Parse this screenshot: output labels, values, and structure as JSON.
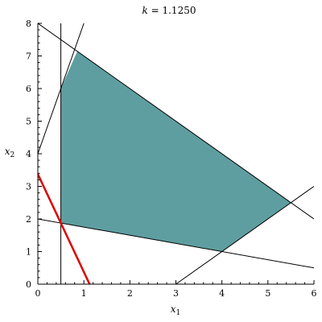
{
  "chart_data": {
    "type": "line",
    "title": {
      "var": "k",
      "text": " = 1.1250"
    },
    "xlabel": {
      "base": "x",
      "sub": "1"
    },
    "ylabel": {
      "base": "x",
      "sub": "2"
    },
    "xlim": [
      0,
      6
    ],
    "ylim": [
      0,
      8
    ],
    "x_ticks": [
      0,
      1,
      2,
      3,
      4,
      5,
      6
    ],
    "y_ticks": [
      0,
      1,
      2,
      3,
      4,
      5,
      6,
      7,
      8
    ],
    "grid": false,
    "feasible_region": {
      "color": "#5f9ea0",
      "vertices": [
        [
          0.5,
          1.875
        ],
        [
          0.5,
          6.0
        ],
        [
          0.857,
          7.142
        ],
        [
          5.5,
          2.5
        ],
        [
          4.0,
          1.0
        ]
      ]
    },
    "constraint_lines": [
      {
        "id": "vertical-x1-0.5",
        "color": "#000000",
        "points": [
          [
            0.5,
            0
          ],
          [
            0.5,
            8
          ]
        ]
      },
      {
        "id": "line-steep-up",
        "color": "#000000",
        "points": [
          [
            0,
            4
          ],
          [
            1.0,
            8.0
          ]
        ]
      },
      {
        "id": "line-top-diagonal",
        "color": "#000000",
        "points": [
          [
            0,
            8
          ],
          [
            6,
            2.0
          ]
        ]
      },
      {
        "id": "line-lower-diagonal",
        "color": "#000000",
        "points": [
          [
            0,
            2
          ],
          [
            6,
            0.5
          ]
        ]
      },
      {
        "id": "line-right-diagonal",
        "color": "#000000",
        "points": [
          [
            3,
            0
          ],
          [
            6,
            3.0
          ]
        ]
      }
    ],
    "objective_line": {
      "color": "#dd0000",
      "points": [
        [
          0,
          3.375
        ],
        [
          1.125,
          0
        ]
      ]
    }
  }
}
